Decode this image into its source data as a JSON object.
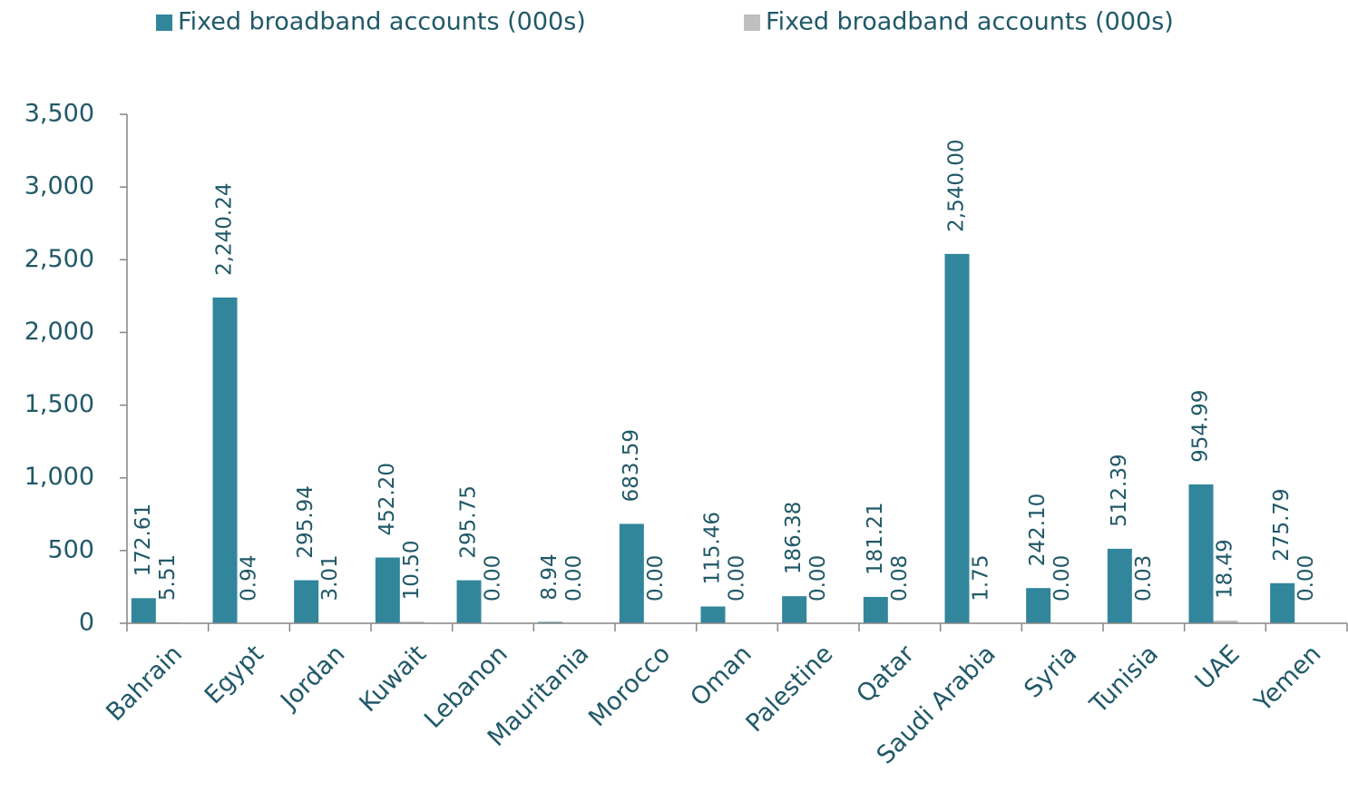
{
  "chart_data": {
    "type": "bar",
    "categories": [
      "Bahrain",
      "Egypt",
      "Jordan",
      "Kuwait",
      "Lebanon",
      "Mauritania",
      "Morocco",
      "Oman",
      "Palestine",
      "Qatar",
      "Saudi Arabia",
      "Syria",
      "Tunisia",
      "UAE",
      "Yemen"
    ],
    "series": [
      {
        "name": "Fixed broadband accounts (000s)",
        "color": "#31869b",
        "values": [
          172.61,
          2240.24,
          295.94,
          452.2,
          295.75,
          8.94,
          683.59,
          115.46,
          186.38,
          181.21,
          2540.0,
          242.1,
          512.39,
          954.99,
          275.79
        ],
        "value_labels": [
          "172.61",
          "2,240.24",
          "295.94",
          "452.20",
          "295.75",
          "8.94",
          "683.59",
          "115.46",
          "186.38",
          "181.21",
          "2,540.00",
          "242.10",
          "512.39",
          "954.99",
          "275.79"
        ]
      },
      {
        "name": "Fixed broadband accounts (000s)",
        "color": "#bfbfbf",
        "values": [
          5.51,
          0.94,
          3.01,
          10.5,
          0.0,
          0.0,
          0.0,
          0.0,
          0.0,
          0.08,
          1.75,
          0.0,
          0.03,
          18.49,
          0.0
        ],
        "value_labels": [
          "5.51",
          "0.94",
          "3.01",
          "10.50",
          "0.00",
          "0.00",
          "0.00",
          "0.00",
          "0.00",
          "0.08",
          "1.75",
          "0.00",
          "0.03",
          "18.49",
          "0.00"
        ]
      }
    ],
    "ylim": [
      0,
      3500
    ],
    "yticks": [
      0,
      500,
      {
        "value": 1000,
        "label": "1,000"
      },
      {
        "value": 1500,
        "label": "1,500"
      },
      {
        "value": 2000,
        "label": "2,000"
      },
      {
        "value": 2500,
        "label": "2,500"
      },
      {
        "value": 3000,
        "label": "3,000"
      },
      {
        "value": 3500,
        "label": "3,500"
      }
    ]
  }
}
